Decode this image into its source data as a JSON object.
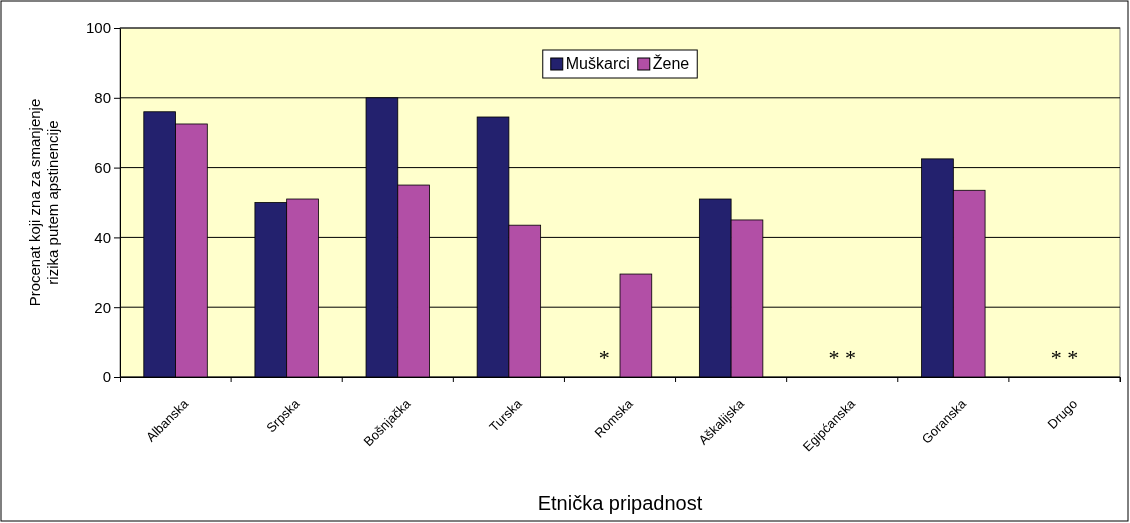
{
  "chart_data": {
    "type": "bar",
    "xlabel": "Etnička pripadnost",
    "ylabel": "Procenat koji zna za smanjenje rizika putem apstinencije",
    "categories": [
      "Albanska",
      "Srpska",
      "Bošnjačka",
      "Turska",
      "Romska",
      "Aškalijska",
      "Egipćanska",
      "Goranska",
      "Drugo"
    ],
    "series": [
      {
        "name": "Muškarci",
        "color": "#23216e",
        "values": [
          76,
          50,
          80,
          74.5,
          null,
          51,
          null,
          62.5,
          null
        ]
      },
      {
        "name": "Žene",
        "color": "#b24fa6",
        "values": [
          72.5,
          51,
          55,
          43.5,
          29.5,
          45,
          null,
          53.5,
          null
        ]
      }
    ],
    "ylim": [
      0,
      100
    ],
    "yticks": [
      0,
      20,
      40,
      60,
      80,
      100
    ],
    "grid": "y",
    "legend": "top",
    "annotations": [
      "*",
      "* *",
      "* *"
    ]
  }
}
